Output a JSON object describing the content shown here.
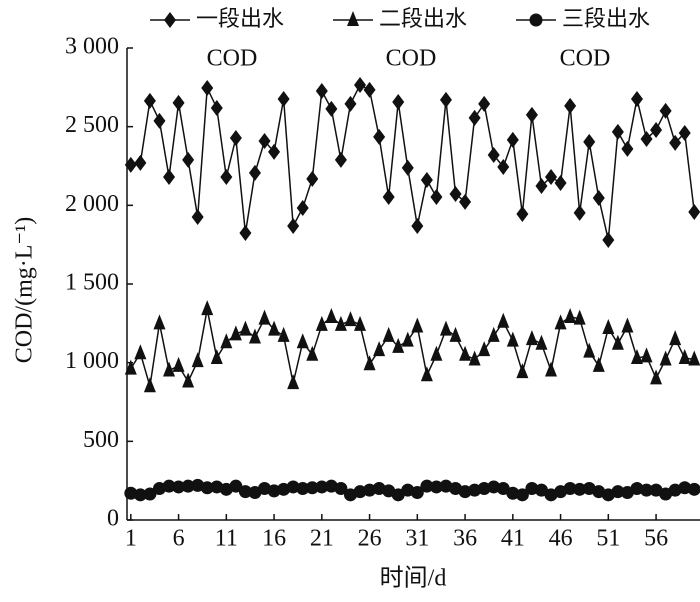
{
  "chart_data": {
    "type": "line",
    "xlabel": "时间/d",
    "ylabel": "COD/(mg·L⁻¹)",
    "annotations": [
      "COD",
      "COD",
      "COD"
    ],
    "x": [
      1,
      2,
      3,
      4,
      5,
      6,
      7,
      8,
      9,
      10,
      11,
      12,
      13,
      14,
      15,
      16,
      17,
      18,
      19,
      20,
      21,
      22,
      23,
      24,
      25,
      26,
      27,
      28,
      29,
      30,
      31,
      32,
      33,
      34,
      35,
      36,
      37,
      38,
      39,
      40,
      41,
      42,
      43,
      44,
      45,
      46,
      47,
      48,
      49,
      50,
      51,
      52,
      53,
      54,
      55,
      56,
      57,
      58,
      59,
      60
    ],
    "series": [
      {
        "name": "一段出水",
        "marker": "diamond",
        "color": "#111111",
        "values": [
          2257,
          2270,
          2664,
          2537,
          2180,
          2651,
          2289,
          1926,
          2746,
          2619,
          2180,
          2428,
          1824,
          2206,
          2409,
          2340,
          2676,
          1869,
          1983,
          2168,
          2727,
          2613,
          2289,
          2645,
          2765,
          2734,
          2435,
          2053,
          2657,
          2238,
          1869,
          2161,
          2053,
          2670,
          2072,
          2022,
          2556,
          2645,
          2320,
          2244,
          2416,
          1945,
          2575,
          2123,
          2180,
          2142,
          2632,
          1952,
          2403,
          2047,
          1780,
          2467,
          2359,
          2676,
          2422,
          2479,
          2600,
          2397,
          2460,
          1958
        ]
      },
      {
        "name": "二段出水",
        "marker": "triangle",
        "color": "#111111",
        "values": [
          962,
          1060,
          850,
          1250,
          950,
          980,
          880,
          1010,
          1340,
          1030,
          1130,
          1180,
          1210,
          1160,
          1280,
          1210,
          1170,
          870,
          1130,
          1050,
          1240,
          1290,
          1240,
          1270,
          1240,
          990,
          1080,
          1170,
          1100,
          1140,
          1230,
          920,
          1050,
          1210,
          1170,
          1050,
          1020,
          1080,
          1170,
          1260,
          1140,
          940,
          1150,
          1120,
          950,
          1250,
          1290,
          1280,
          1070,
          980,
          1220,
          1120,
          1230,
          1030,
          1040,
          900,
          1020,
          1150,
          1030,
          1020
        ]
      },
      {
        "name": "三段出水",
        "marker": "circle",
        "color": "#111111",
        "values": [
          170,
          160,
          165,
          200,
          215,
          210,
          215,
          220,
          205,
          210,
          195,
          215,
          180,
          175,
          200,
          185,
          195,
          210,
          200,
          205,
          210,
          215,
          200,
          160,
          180,
          190,
          200,
          185,
          160,
          190,
          175,
          215,
          210,
          215,
          200,
          180,
          190,
          200,
          210,
          200,
          170,
          160,
          200,
          190,
          160,
          180,
          200,
          195,
          200,
          180,
          160,
          180,
          175,
          200,
          190,
          190,
          165,
          190,
          205,
          195
        ]
      }
    ],
    "xlim": [
      0.6,
      60.6
    ],
    "xticks": [
      1,
      6,
      11,
      16,
      21,
      26,
      31,
      36,
      41,
      46,
      51,
      56
    ],
    "ylim": [
      0,
      3000
    ],
    "yticks": [
      0,
      500,
      {
        "value": 1000,
        "label": "1 000"
      },
      {
        "value": 1500,
        "label": "1 500"
      },
      {
        "value": 2000,
        "label": "2 000"
      },
      {
        "value": 2500,
        "label": "2 500"
      },
      {
        "value": 3000,
        "label": "3 000"
      }
    ]
  }
}
